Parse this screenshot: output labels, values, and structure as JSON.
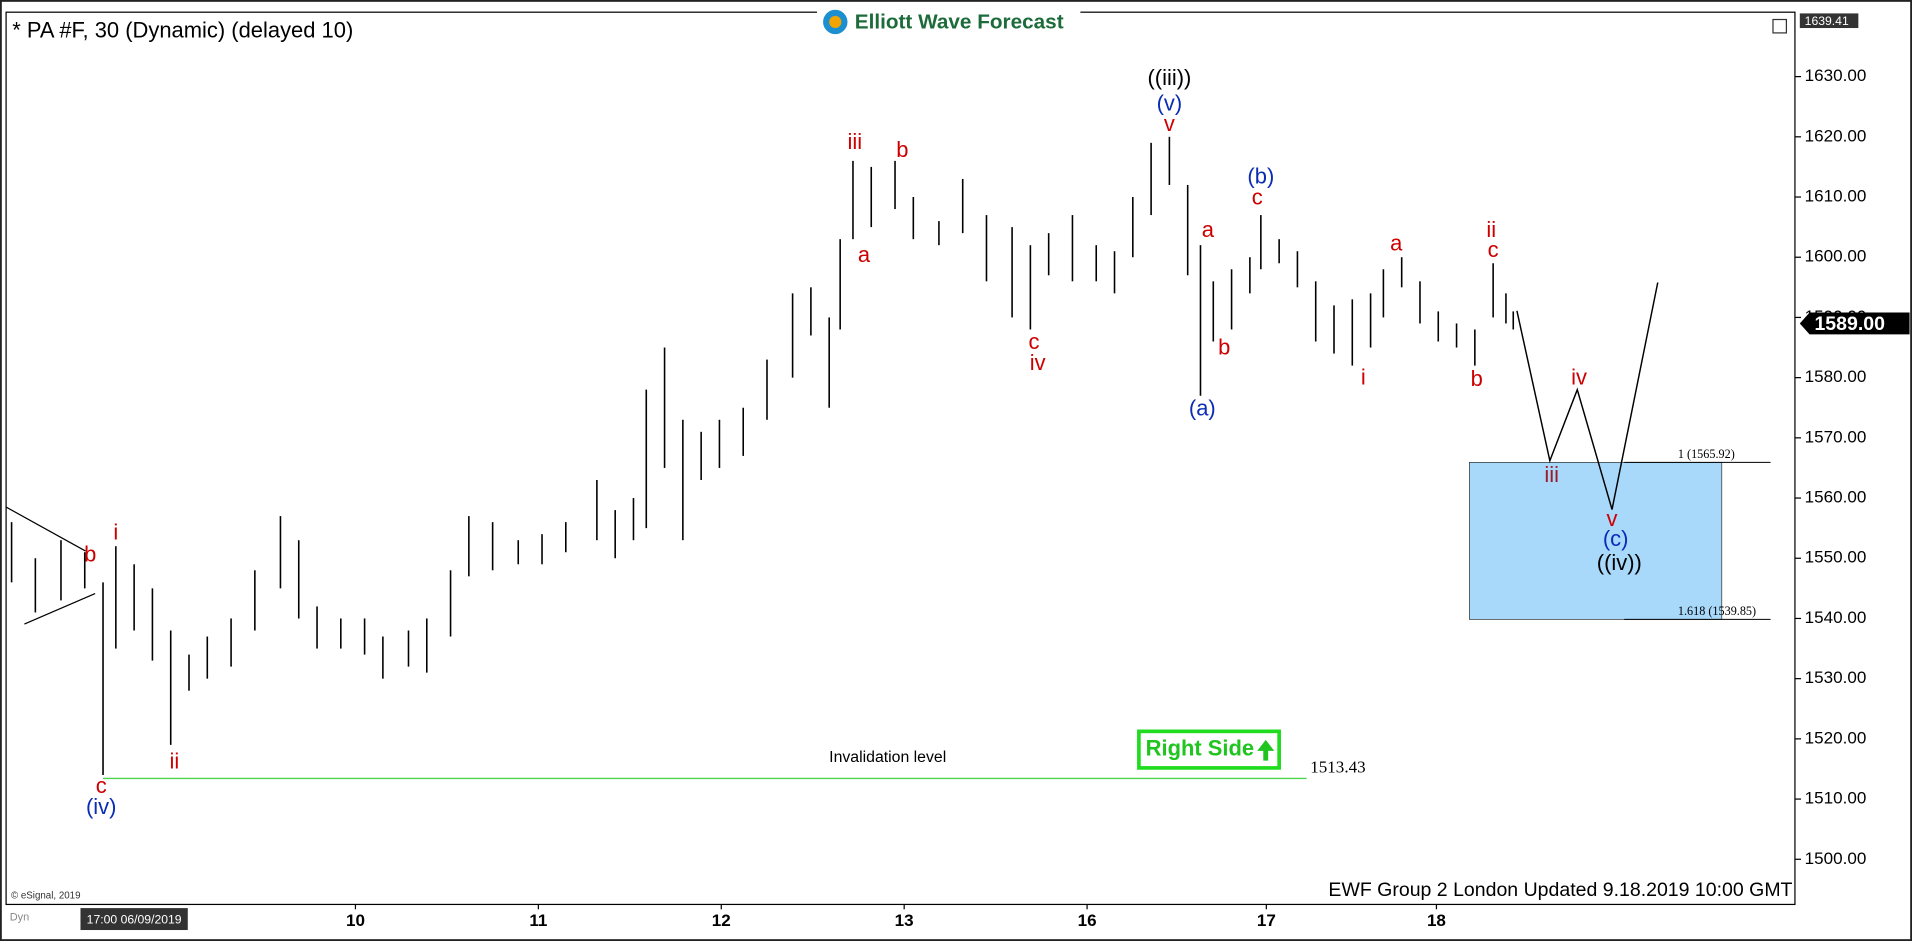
{
  "chart_data": {
    "type": "range-bar",
    "title": "* PA #F, 30 (Dynamic) (delayed 10)",
    "logo": "Elliott Wave Forecast",
    "footer": "EWF Group 2 London Updated 9.18.2019 10:00 GMT",
    "copyright": "© eSignal, 2019",
    "corner_label": "Dyn",
    "start_label": "17:00 06/09/2019",
    "top_price_label": "1639.41",
    "badge": "Right Side",
    "color": "#000000",
    "xlim": [
      -0.91,
      8.87
    ],
    "ylim": [
      1492.5,
      1640.7
    ],
    "xticks": [
      {
        "value": 1,
        "label": "10"
      },
      {
        "value": 2,
        "label": "11"
      },
      {
        "value": 3,
        "label": "12"
      },
      {
        "value": 4,
        "label": "13"
      },
      {
        "value": 5,
        "label": "16"
      },
      {
        "value": 5.98,
        "label": "17"
      },
      {
        "value": 6.91,
        "label": "18"
      }
    ],
    "yticks": [
      {
        "value": 1500,
        "label": "1500.00"
      },
      {
        "value": 1510,
        "label": "1510.00"
      },
      {
        "value": 1520,
        "label": "1520.00"
      },
      {
        "value": 1530,
        "label": "1530.00"
      },
      {
        "value": 1540,
        "label": "1540.00"
      },
      {
        "value": 1550,
        "label": "1550.00"
      },
      {
        "value": 1560,
        "label": "1560.00"
      },
      {
        "value": 1570,
        "label": "1570.00"
      },
      {
        "value": 1580,
        "label": "1580.00"
      },
      {
        "value": 1590,
        "label": "1590.00"
      },
      {
        "value": 1600,
        "label": "1600.00"
      },
      {
        "value": 1610,
        "label": "1610.00"
      },
      {
        "value": 1620,
        "label": "1620.00"
      },
      {
        "value": 1630,
        "label": "1630.00"
      }
    ],
    "x": [
      -0.88,
      -0.75,
      -0.61,
      -0.48,
      -0.38,
      -0.31,
      -0.21,
      -0.11,
      -0.01,
      0.09,
      0.19,
      0.32,
      0.45,
      0.59,
      0.69,
      0.79,
      0.92,
      1.05,
      1.15,
      1.29,
      1.39,
      1.52,
      1.62,
      1.75,
      1.89,
      2.02,
      2.15,
      2.32,
      2.42,
      2.52,
      2.59,
      2.69,
      2.79,
      2.89,
      2.99,
      3.12,
      3.25,
      3.39,
      3.49,
      3.59,
      3.65,
      3.72,
      3.82,
      3.95,
      4.05,
      4.19,
      4.32,
      4.45,
      4.59,
      4.69,
      4.79,
      4.92,
      5.05,
      5.15,
      5.25,
      5.35,
      5.45,
      5.55,
      5.62,
      5.69,
      5.79,
      5.89,
      5.95,
      6.05,
      6.15,
      6.25,
      6.35,
      6.45,
      6.55,
      6.62,
      6.72,
      6.82,
      6.92,
      7.02,
      7.12,
      7.22,
      7.29,
      7.33
    ],
    "high": [
      1556,
      1550,
      1553,
      1551,
      1546,
      1552,
      1549,
      1545,
      1538,
      1534,
      1537,
      1540,
      1548,
      1557,
      1553,
      1542,
      1540,
      1540,
      1537,
      1538,
      1540,
      1548,
      1557,
      1556,
      1553,
      1554,
      1556,
      1563,
      1558,
      1560,
      1578,
      1585,
      1573,
      1571,
      1573,
      1575,
      1583,
      1594,
      1595,
      1590,
      1603,
      1616,
      1615,
      1616,
      1610,
      1606,
      1613,
      1607,
      1605,
      1602,
      1604,
      1607,
      1602,
      1601,
      1610,
      1619,
      1620,
      1612,
      1602,
      1596,
      1598,
      1600,
      1607,
      1603,
      1601,
      1596,
      1592,
      1593,
      1594,
      1598,
      1600,
      1596,
      1591,
      1589,
      1588,
      1599,
      1594,
      1591
    ],
    "low": [
      1546,
      1541,
      1543,
      1545,
      1514,
      1535,
      1538,
      1533,
      1519,
      1528,
      1530,
      1532,
      1538,
      1545,
      1540,
      1535,
      1535,
      1534,
      1530,
      1532,
      1531,
      1537,
      1547,
      1548,
      1549,
      1549,
      1551,
      1553,
      1550,
      1553,
      1555,
      1565,
      1553,
      1563,
      1565,
      1567,
      1573,
      1580,
      1587,
      1575,
      1588,
      1603,
      1605,
      1608,
      1603,
      1602,
      1604,
      1596,
      1590,
      1588,
      1597,
      1596,
      1596,
      1594,
      1600,
      1607,
      1612,
      1597,
      1577,
      1586,
      1588,
      1594,
      1598,
      1599,
      1595,
      1586,
      1584,
      1582,
      1585,
      1590,
      1595,
      1589,
      1586,
      1585,
      1582,
      1590,
      1589,
      1588
    ],
    "last_price": 1589,
    "last_price_label": "1589.00",
    "projection": {
      "x": [
        7.35,
        7.53,
        7.68,
        7.87,
        8.12
      ],
      "values": [
        1591.1,
        1566.2,
        1578.0,
        1558.1,
        1595.8
      ]
    },
    "target_zone": {
      "x": [
        7.09,
        8.47
      ],
      "top": 1565.92,
      "bottom": 1539.85,
      "top_label": "1 (1565.92)",
      "bottom_label": "1.618 (1539.85)",
      "color": "#a8d8fa"
    },
    "invalidation": {
      "value": 1513.43,
      "x": [
        -0.38,
        6.2
      ],
      "label": "Invalidation level",
      "color": "#4cd44c"
    },
    "annotations": [
      {
        "text": "b",
        "x": -0.45,
        "y": 1550.4,
        "color": "#cc0000"
      },
      {
        "text": "i",
        "x": -0.31,
        "y": 1554.1,
        "color": "#cc0000"
      },
      {
        "text": "c",
        "x": -0.39,
        "y": 1512.0,
        "color": "#cc0000"
      },
      {
        "text": "(iv)",
        "x": -0.39,
        "y": 1508.5,
        "color": "#0a2db4"
      },
      {
        "text": "ii",
        "x": 0.01,
        "y": 1516.0,
        "color": "#cc0000"
      },
      {
        "text": "iii",
        "x": 3.73,
        "y": 1618.9,
        "color": "#cc0000"
      },
      {
        "text": "a",
        "x": 3.78,
        "y": 1600.2,
        "color": "#cc0000"
      },
      {
        "text": "b",
        "x": 3.99,
        "y": 1617.6,
        "color": "#cc0000"
      },
      {
        "text": "c",
        "x": 4.71,
        "y": 1585.7,
        "color": "#cc0000"
      },
      {
        "text": "iv",
        "x": 4.73,
        "y": 1582.2,
        "color": "#cc0000"
      },
      {
        "text": "((iii))",
        "x": 5.45,
        "y": 1629.6,
        "color": "#000000"
      },
      {
        "text": "(v)",
        "x": 5.45,
        "y": 1625.3,
        "color": "#0a2db4"
      },
      {
        "text": "v",
        "x": 5.45,
        "y": 1621.9,
        "color": "#cc0000"
      },
      {
        "text": "a",
        "x": 5.66,
        "y": 1604.3,
        "color": "#cc0000"
      },
      {
        "text": "b",
        "x": 5.75,
        "y": 1584.8,
        "color": "#cc0000"
      },
      {
        "text": "(a)",
        "x": 5.63,
        "y": 1574.7,
        "color": "#0a2db4"
      },
      {
        "text": "(b)",
        "x": 5.95,
        "y": 1613.2,
        "color": "#0a2db4"
      },
      {
        "text": "c",
        "x": 5.93,
        "y": 1609.7,
        "color": "#cc0000"
      },
      {
        "text": "a",
        "x": 6.69,
        "y": 1602.1,
        "color": "#cc0000"
      },
      {
        "text": "i",
        "x": 6.51,
        "y": 1579.8,
        "color": "#cc0000"
      },
      {
        "text": "b",
        "x": 7.13,
        "y": 1579.6,
        "color": "#cc0000"
      },
      {
        "text": "ii",
        "x": 7.21,
        "y": 1604.3,
        "color": "#cc0000"
      },
      {
        "text": "c",
        "x": 7.22,
        "y": 1601.0,
        "color": "#cc0000"
      },
      {
        "text": "iii",
        "x": 7.54,
        "y": 1563.6,
        "color": "#9b1c2a"
      },
      {
        "text": "iv",
        "x": 7.69,
        "y": 1579.8,
        "color": "#cc0000"
      },
      {
        "text": "v",
        "x": 7.87,
        "y": 1556.3,
        "color": "#cc0000"
      },
      {
        "text": "(c)",
        "x": 7.89,
        "y": 1553.0,
        "color": "#0a2db4"
      },
      {
        "text": "((iv))",
        "x": 7.91,
        "y": 1549.0,
        "color": "#000000"
      }
    ]
  }
}
